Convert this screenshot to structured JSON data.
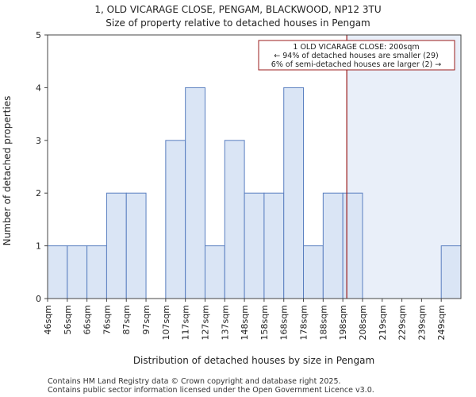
{
  "title": "1, OLD VICARAGE CLOSE, PENGAM, BLACKWOOD, NP12 3TU",
  "subtitle": "Size of property relative to detached houses in Pengam",
  "footer": [
    "Contains HM Land Registry data © Crown copyright and database right 2025.",
    "Contains public sector information licensed under the Open Government Licence v3.0."
  ],
  "annotation": {
    "lines": [
      "1 OLD VICARAGE CLOSE: 200sqm",
      "← 94% of detached houses are smaller (29)",
      "6% of semi-detached houses are larger (2) →"
    ],
    "marker_value": 200
  },
  "colors": {
    "bar_fill": "#dae5f5",
    "bar_edge": "#5a7fc0",
    "marker": "#9b1c1c",
    "highlight": "#e9eff9"
  },
  "chart_data": {
    "type": "bar",
    "title": "1, OLD VICARAGE CLOSE, PENGAM, BLACKWOOD, NP12 3TU",
    "subtitle": "Size of property relative to detached houses in Pengam",
    "xlabel": "Distribution of detached houses by size in Pengam",
    "ylabel": "Number of detached properties",
    "categories": [
      "46sqm",
      "56sqm",
      "66sqm",
      "76sqm",
      "87sqm",
      "97sqm",
      "107sqm",
      "117sqm",
      "127sqm",
      "137sqm",
      "148sqm",
      "158sqm",
      "168sqm",
      "178sqm",
      "188sqm",
      "198sqm",
      "208sqm",
      "219sqm",
      "229sqm",
      "239sqm",
      "249sqm"
    ],
    "values": [
      1,
      1,
      1,
      2,
      2,
      0,
      3,
      4,
      1,
      3,
      2,
      2,
      4,
      1,
      2,
      2,
      0,
      0,
      0,
      0,
      1
    ],
    "ylim": [
      0,
      5
    ],
    "yticks": [
      0,
      1,
      2,
      3,
      4,
      5
    ],
    "grid": false,
    "marker_value": 200
  }
}
